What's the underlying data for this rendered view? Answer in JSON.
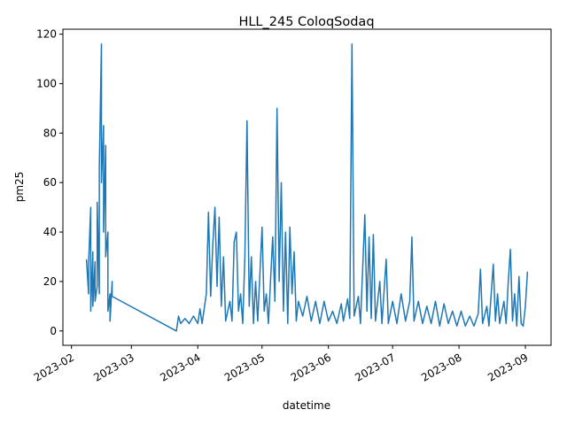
{
  "chart_data": {
    "type": "line",
    "title": "HLL_245 ColoqSodaq",
    "xlabel": "datetime",
    "ylabel": "pm25",
    "x_ticks": [
      "2023-02",
      "2023-03",
      "2023-04",
      "2023-05",
      "2023-06",
      "2023-07",
      "2023-08",
      "2023-09"
    ],
    "y_ticks": [
      0,
      20,
      40,
      60,
      80,
      100,
      120
    ],
    "xlim": [
      "2023-01-28",
      "2023-09-13"
    ],
    "ylim": [
      -5.8,
      122
    ],
    "grid": false,
    "legend": "none",
    "series": [
      {
        "color": "#1f77b4",
        "points": [
          [
            "2023-02-08",
            29
          ],
          [
            "2023-02-09",
            15
          ],
          [
            "2023-02-09",
            27
          ],
          [
            "2023-02-10",
            50
          ],
          [
            "2023-02-10",
            8
          ],
          [
            "2023-02-11",
            32
          ],
          [
            "2023-02-11",
            10
          ],
          [
            "2023-02-12",
            28
          ],
          [
            "2023-02-12",
            12
          ],
          [
            "2023-02-13",
            18
          ],
          [
            "2023-02-13",
            52
          ],
          [
            "2023-02-14",
            15
          ],
          [
            "2023-02-14",
            66
          ],
          [
            "2023-02-15",
            116
          ],
          [
            "2023-02-15",
            60
          ],
          [
            "2023-02-16",
            83
          ],
          [
            "2023-02-16",
            40
          ],
          [
            "2023-02-17",
            75
          ],
          [
            "2023-02-17",
            30
          ],
          [
            "2023-02-18",
            40
          ],
          [
            "2023-02-18",
            8
          ],
          [
            "2023-02-19",
            15
          ],
          [
            "2023-02-19",
            4
          ],
          [
            "2023-02-20",
            20
          ],
          [
            "2023-02-20",
            14
          ],
          [
            "2023-03-22",
            0
          ],
          [
            "2023-03-23",
            6
          ],
          [
            "2023-03-24",
            3
          ],
          [
            "2023-03-26",
            5
          ],
          [
            "2023-03-28",
            3
          ],
          [
            "2023-03-30",
            6
          ],
          [
            "2023-04-01",
            3
          ],
          [
            "2023-04-02",
            9
          ],
          [
            "2023-04-03",
            3
          ],
          [
            "2023-04-05",
            15
          ],
          [
            "2023-04-06",
            48
          ],
          [
            "2023-04-07",
            14
          ],
          [
            "2023-04-08",
            35
          ],
          [
            "2023-04-09",
            50
          ],
          [
            "2023-04-10",
            18
          ],
          [
            "2023-04-11",
            46
          ],
          [
            "2023-04-12",
            10
          ],
          [
            "2023-04-13",
            30
          ],
          [
            "2023-04-14",
            4
          ],
          [
            "2023-04-16",
            12
          ],
          [
            "2023-04-17",
            4
          ],
          [
            "2023-04-18",
            36
          ],
          [
            "2023-04-19",
            40
          ],
          [
            "2023-04-20",
            8
          ],
          [
            "2023-04-21",
            15
          ],
          [
            "2023-04-22",
            3
          ],
          [
            "2023-04-23",
            30
          ],
          [
            "2023-04-24",
            85
          ],
          [
            "2023-04-25",
            10
          ],
          [
            "2023-04-26",
            30
          ],
          [
            "2023-04-27",
            3
          ],
          [
            "2023-04-28",
            20
          ],
          [
            "2023-04-29",
            4
          ],
          [
            "2023-05-01",
            42
          ],
          [
            "2023-05-02",
            8
          ],
          [
            "2023-05-03",
            15
          ],
          [
            "2023-05-04",
            3
          ],
          [
            "2023-05-06",
            38
          ],
          [
            "2023-05-07",
            12
          ],
          [
            "2023-05-08",
            90
          ],
          [
            "2023-05-09",
            20
          ],
          [
            "2023-05-10",
            60
          ],
          [
            "2023-05-11",
            8
          ],
          [
            "2023-05-12",
            40
          ],
          [
            "2023-05-13",
            3
          ],
          [
            "2023-05-14",
            42
          ],
          [
            "2023-05-15",
            15
          ],
          [
            "2023-05-16",
            32
          ],
          [
            "2023-05-17",
            4
          ],
          [
            "2023-05-18",
            12
          ],
          [
            "2023-05-20",
            6
          ],
          [
            "2023-05-22",
            14
          ],
          [
            "2023-05-24",
            4
          ],
          [
            "2023-05-26",
            12
          ],
          [
            "2023-05-28",
            3
          ],
          [
            "2023-05-30",
            12
          ],
          [
            "2023-06-01",
            4
          ],
          [
            "2023-06-03",
            8
          ],
          [
            "2023-06-05",
            3
          ],
          [
            "2023-06-07",
            11
          ],
          [
            "2023-06-08",
            4
          ],
          [
            "2023-06-10",
            13
          ],
          [
            "2023-06-11",
            5
          ],
          [
            "2023-06-12",
            116
          ],
          [
            "2023-06-13",
            6
          ],
          [
            "2023-06-15",
            14
          ],
          [
            "2023-06-16",
            3
          ],
          [
            "2023-06-18",
            47
          ],
          [
            "2023-06-19",
            8
          ],
          [
            "2023-06-20",
            38
          ],
          [
            "2023-06-21",
            5
          ],
          [
            "2023-06-22",
            39
          ],
          [
            "2023-06-23",
            4
          ],
          [
            "2023-06-25",
            20
          ],
          [
            "2023-06-26",
            3
          ],
          [
            "2023-06-28",
            29
          ],
          [
            "2023-06-29",
            3
          ],
          [
            "2023-07-01",
            12
          ],
          [
            "2023-07-03",
            3
          ],
          [
            "2023-07-05",
            15
          ],
          [
            "2023-07-07",
            4
          ],
          [
            "2023-07-09",
            12
          ],
          [
            "2023-07-10",
            38
          ],
          [
            "2023-07-11",
            4
          ],
          [
            "2023-07-13",
            12
          ],
          [
            "2023-07-15",
            3
          ],
          [
            "2023-07-17",
            10
          ],
          [
            "2023-07-19",
            3
          ],
          [
            "2023-07-21",
            12
          ],
          [
            "2023-07-23",
            2
          ],
          [
            "2023-07-25",
            11
          ],
          [
            "2023-07-27",
            3
          ],
          [
            "2023-07-29",
            8
          ],
          [
            "2023-07-31",
            2
          ],
          [
            "2023-08-02",
            8
          ],
          [
            "2023-08-04",
            2
          ],
          [
            "2023-08-06",
            6
          ],
          [
            "2023-08-08",
            2
          ],
          [
            "2023-08-10",
            7
          ],
          [
            "2023-08-11",
            25
          ],
          [
            "2023-08-12",
            3
          ],
          [
            "2023-08-14",
            10
          ],
          [
            "2023-08-15",
            2
          ],
          [
            "2023-08-17",
            27
          ],
          [
            "2023-08-18",
            4
          ],
          [
            "2023-08-19",
            15
          ],
          [
            "2023-08-20",
            3
          ],
          [
            "2023-08-22",
            12
          ],
          [
            "2023-08-23",
            3
          ],
          [
            "2023-08-24",
            20
          ],
          [
            "2023-08-25",
            33
          ],
          [
            "2023-08-26",
            4
          ],
          [
            "2023-08-27",
            15
          ],
          [
            "2023-08-28",
            2
          ],
          [
            "2023-08-29",
            22
          ],
          [
            "2023-08-30",
            3
          ],
          [
            "2023-08-31",
            2
          ],
          [
            "2023-09-01",
            10
          ],
          [
            "2023-09-02",
            24
          ]
        ]
      }
    ]
  }
}
